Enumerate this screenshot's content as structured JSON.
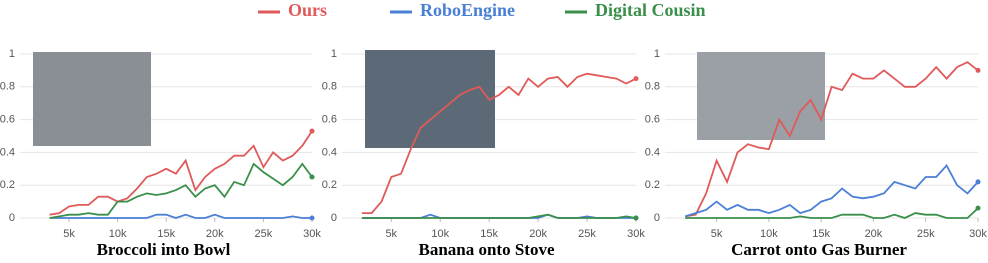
{
  "chart_data": [
    {
      "type": "line",
      "title": "Broccoli into Bowl",
      "x": [
        2000,
        3000,
        4000,
        5000,
        6000,
        7000,
        8000,
        9000,
        10000,
        11000,
        12000,
        13000,
        14000,
        15000,
        16000,
        17000,
        18000,
        19000,
        20000,
        21000,
        22000,
        23000,
        24000,
        25000,
        26000,
        27000,
        28000,
        29000,
        30000
      ],
      "series": [
        {
          "name": "Ours",
          "color": "#e05a5a",
          "values": [
            null,
            0.02,
            0.03,
            0.07,
            0.08,
            0.08,
            0.13,
            0.13,
            0.1,
            0.12,
            0.18,
            0.25,
            0.27,
            0.3,
            0.27,
            0.35,
            0.17,
            0.25,
            0.3,
            0.33,
            0.38,
            0.38,
            0.44,
            0.31,
            0.4,
            0.35,
            0.38,
            0.44,
            0.53
          ]
        },
        {
          "name": "RoboEngine",
          "color": "#4a7fd6",
          "values": [
            null,
            0,
            0,
            0,
            0,
            0,
            0,
            0,
            0,
            0,
            0,
            0,
            0.02,
            0.02,
            0,
            0.02,
            0,
            0,
            0.02,
            0,
            0,
            0,
            0,
            0,
            0,
            0,
            0.01,
            0,
            0
          ]
        },
        {
          "name": "Digital Cousin",
          "color": "#3a8f4a",
          "values": [
            null,
            0,
            0.01,
            0.02,
            0.02,
            0.03,
            0.02,
            0.02,
            0.1,
            0.1,
            0.13,
            0.15,
            0.14,
            0.15,
            0.17,
            0.2,
            0.13,
            0.18,
            0.2,
            0.13,
            0.22,
            0.2,
            0.33,
            0.28,
            0.24,
            0.2,
            0.25,
            0.33,
            0.25
          ]
        }
      ],
      "xlim": [
        1500,
        30000
      ],
      "ylim": [
        0,
        1
      ],
      "xticks": [
        {
          "value": 5000,
          "label": "5k"
        },
        {
          "value": 10000,
          "label": "10k"
        },
        {
          "value": 15000,
          "label": "15k"
        },
        {
          "value": 20000,
          "label": "20k"
        },
        {
          "value": 25000,
          "label": "25k"
        },
        {
          "value": 30000,
          "label": "30k"
        }
      ],
      "yticks": [
        0,
        0.2,
        0.4,
        0.6,
        0.8,
        1
      ],
      "grid": true
    },
    {
      "type": "line",
      "title": "Banana onto Stove",
      "x": [
        2000,
        3000,
        4000,
        5000,
        6000,
        7000,
        8000,
        9000,
        10000,
        11000,
        12000,
        13000,
        14000,
        15000,
        16000,
        17000,
        18000,
        19000,
        20000,
        21000,
        22000,
        23000,
        24000,
        25000,
        26000,
        27000,
        28000,
        29000,
        30000
      ],
      "series": [
        {
          "name": "Ours",
          "color": "#e05a5a",
          "values": [
            0.03,
            0.03,
            0.1,
            0.25,
            0.27,
            0.42,
            0.55,
            0.6,
            0.65,
            0.7,
            0.75,
            0.78,
            0.8,
            0.72,
            0.75,
            0.8,
            0.75,
            0.85,
            0.8,
            0.85,
            0.86,
            0.8,
            0.86,
            0.88,
            0.87,
            0.86,
            0.85,
            0.82,
            0.85
          ]
        },
        {
          "name": "RoboEngine",
          "color": "#4a7fd6",
          "values": [
            0,
            0,
            0,
            0,
            0,
            0,
            0,
            0.02,
            0,
            0,
            0,
            0,
            0,
            0,
            0,
            0,
            0,
            0,
            0,
            0.02,
            0,
            0,
            0,
            0.01,
            0,
            0,
            0,
            0,
            0
          ]
        },
        {
          "name": "Digital Cousin",
          "color": "#3a8f4a",
          "values": [
            0,
            0,
            0,
            0,
            0,
            0,
            0,
            0,
            0,
            0,
            0,
            0,
            0,
            0,
            0,
            0,
            0,
            0,
            0.01,
            0.02,
            0,
            0,
            0,
            0,
            0,
            0,
            0,
            0.01,
            0
          ]
        }
      ],
      "xlim": [
        1500,
        30000
      ],
      "ylim": [
        0,
        1
      ],
      "xticks": [
        {
          "value": 5000,
          "label": "5k"
        },
        {
          "value": 10000,
          "label": "10k"
        },
        {
          "value": 15000,
          "label": "15k"
        },
        {
          "value": 20000,
          "label": "20k"
        },
        {
          "value": 25000,
          "label": "25k"
        },
        {
          "value": 30000,
          "label": "30k"
        }
      ],
      "yticks": [
        0,
        0.2,
        0.4,
        0.6,
        0.8,
        1
      ],
      "grid": true
    },
    {
      "type": "line",
      "title": "Carrot onto Gas Burner",
      "x": [
        2000,
        3000,
        4000,
        5000,
        6000,
        7000,
        8000,
        9000,
        10000,
        11000,
        12000,
        13000,
        14000,
        15000,
        16000,
        17000,
        18000,
        19000,
        20000,
        21000,
        22000,
        23000,
        24000,
        25000,
        26000,
        27000,
        28000,
        29000,
        30000
      ],
      "series": [
        {
          "name": "Ours",
          "color": "#e05a5a",
          "values": [
            0.01,
            0.02,
            0.15,
            0.35,
            0.22,
            0.4,
            0.45,
            0.43,
            0.42,
            0.6,
            0.5,
            0.65,
            0.72,
            0.6,
            0.8,
            0.78,
            0.88,
            0.85,
            0.85,
            0.9,
            0.85,
            0.8,
            0.8,
            0.85,
            0.92,
            0.85,
            0.92,
            0.95,
            0.9
          ]
        },
        {
          "name": "RoboEngine",
          "color": "#4a7fd6",
          "values": [
            0.01,
            0.03,
            0.05,
            0.1,
            0.05,
            0.08,
            0.05,
            0.05,
            0.03,
            0.05,
            0.08,
            0.03,
            0.05,
            0.1,
            0.12,
            0.18,
            0.13,
            0.12,
            0.13,
            0.15,
            0.22,
            0.2,
            0.18,
            0.25,
            0.25,
            0.32,
            0.2,
            0.15,
            0.22
          ]
        },
        {
          "name": "Digital Cousin",
          "color": "#3a8f4a",
          "values": [
            0,
            0,
            0,
            0,
            0,
            0,
            0,
            0,
            0,
            0,
            0,
            0.01,
            0,
            0,
            0,
            0.02,
            0.02,
            0.02,
            0,
            0,
            0.02,
            0,
            0.03,
            0.02,
            0.02,
            0,
            0,
            0,
            0.06
          ]
        }
      ],
      "xlim": [
        1500,
        30000
      ],
      "ylim": [
        0,
        1
      ],
      "xticks": [
        {
          "value": 5000,
          "label": "5k"
        },
        {
          "value": 10000,
          "label": "10k"
        },
        {
          "value": 15000,
          "label": "15k"
        },
        {
          "value": 20000,
          "label": "20k"
        },
        {
          "value": 25000,
          "label": "25k"
        },
        {
          "value": 30000,
          "label": "30k"
        }
      ],
      "yticks": [
        0,
        0.2,
        0.4,
        0.6,
        0.8,
        1
      ],
      "grid": true
    }
  ]
}
